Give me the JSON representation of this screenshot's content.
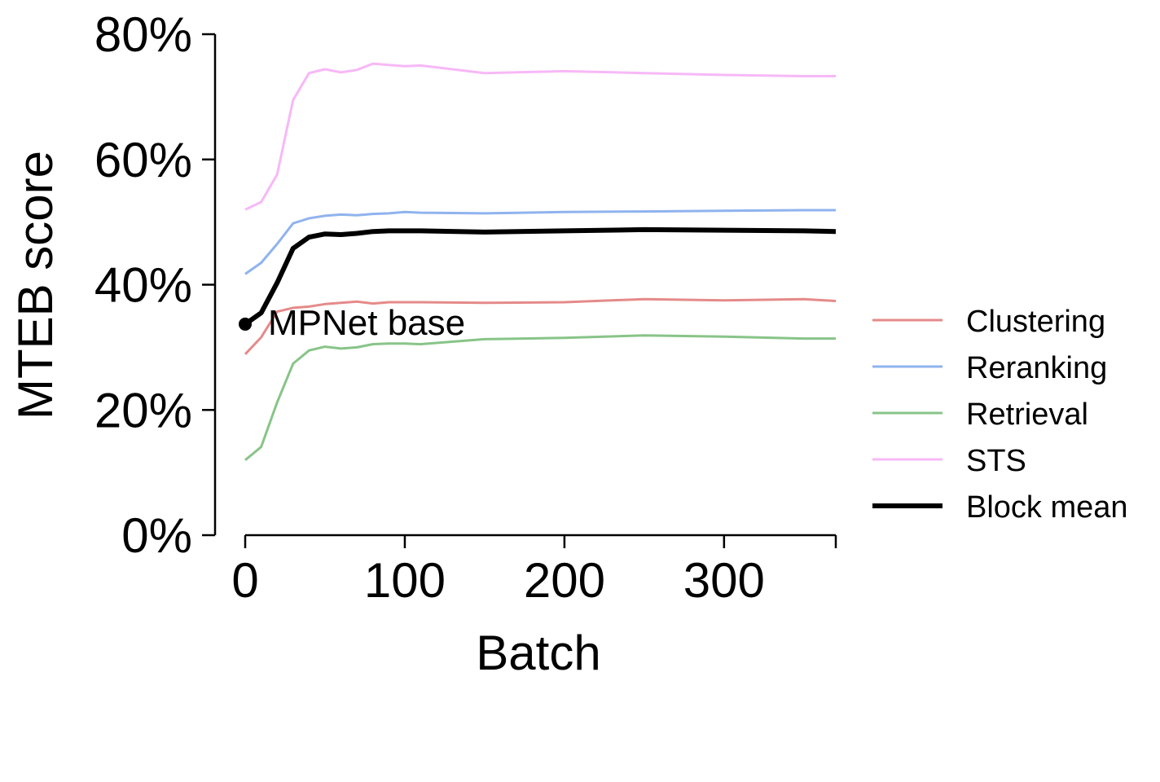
{
  "chart_data": {
    "type": "line",
    "xlabel": "Batch",
    "ylabel": "MTEB score",
    "xlim": [
      0,
      370
    ],
    "ylim": [
      0,
      80
    ],
    "x_ticks": [
      0,
      100,
      200,
      300
    ],
    "x_tick_labels": [
      "0",
      "100",
      "200",
      "300"
    ],
    "y_ticks": [
      0,
      20,
      40,
      60,
      80
    ],
    "y_tick_labels": [
      "0%",
      "20%",
      "40%",
      "60%",
      "80%"
    ],
    "grid": false,
    "legend_position": "right",
    "annotation": {
      "text": "MPNet base",
      "x": 0,
      "y": 33.7
    },
    "series": [
      {
        "name": "Clustering",
        "color": "#e58a8a",
        "width": 3,
        "x": [
          0,
          10,
          20,
          30,
          40,
          50,
          60,
          70,
          80,
          90,
          100,
          110,
          150,
          200,
          250,
          300,
          350,
          370
        ],
        "values": [
          28.9,
          31.6,
          35.7,
          36.3,
          36.5,
          36.9,
          37.1,
          37.3,
          37.0,
          37.2,
          37.2,
          37.2,
          37.1,
          37.2,
          37.7,
          37.5,
          37.7,
          37.4
        ]
      },
      {
        "name": "Reranking",
        "color": "#8fb3ee",
        "width": 3,
        "x": [
          0,
          10,
          20,
          30,
          40,
          50,
          60,
          70,
          80,
          90,
          100,
          110,
          150,
          200,
          250,
          300,
          350,
          370
        ],
        "values": [
          41.7,
          43.5,
          46.5,
          49.8,
          50.6,
          51.0,
          51.2,
          51.1,
          51.3,
          51.4,
          51.6,
          51.5,
          51.4,
          51.6,
          51.7,
          51.8,
          51.9,
          51.9
        ]
      },
      {
        "name": "Retrieval",
        "color": "#88c488",
        "width": 3,
        "x": [
          0,
          10,
          20,
          30,
          40,
          50,
          60,
          70,
          80,
          90,
          100,
          110,
          150,
          200,
          250,
          300,
          350,
          370
        ],
        "values": [
          12.0,
          14.1,
          21.2,
          27.4,
          29.5,
          30.1,
          29.8,
          30.0,
          30.5,
          30.6,
          30.6,
          30.5,
          31.3,
          31.5,
          31.9,
          31.7,
          31.4,
          31.4
        ]
      },
      {
        "name": "STS",
        "color": "#f7b8f7",
        "width": 3,
        "x": [
          0,
          10,
          20,
          30,
          40,
          50,
          60,
          70,
          80,
          90,
          100,
          110,
          150,
          200,
          250,
          300,
          350,
          370
        ],
        "values": [
          52.0,
          53.2,
          57.6,
          69.5,
          73.8,
          74.4,
          73.9,
          74.3,
          75.3,
          75.1,
          74.9,
          75.0,
          73.8,
          74.1,
          73.8,
          73.5,
          73.3,
          73.3
        ]
      },
      {
        "name": "Block mean",
        "color": "#000000",
        "width": 6,
        "x": [
          0,
          10,
          20,
          30,
          40,
          50,
          60,
          70,
          80,
          90,
          100,
          110,
          150,
          200,
          250,
          300,
          350,
          370
        ],
        "values": [
          33.7,
          35.5,
          40.3,
          45.8,
          47.6,
          48.1,
          48.0,
          48.2,
          48.5,
          48.6,
          48.6,
          48.6,
          48.4,
          48.6,
          48.8,
          48.7,
          48.6,
          48.5
        ]
      }
    ]
  }
}
